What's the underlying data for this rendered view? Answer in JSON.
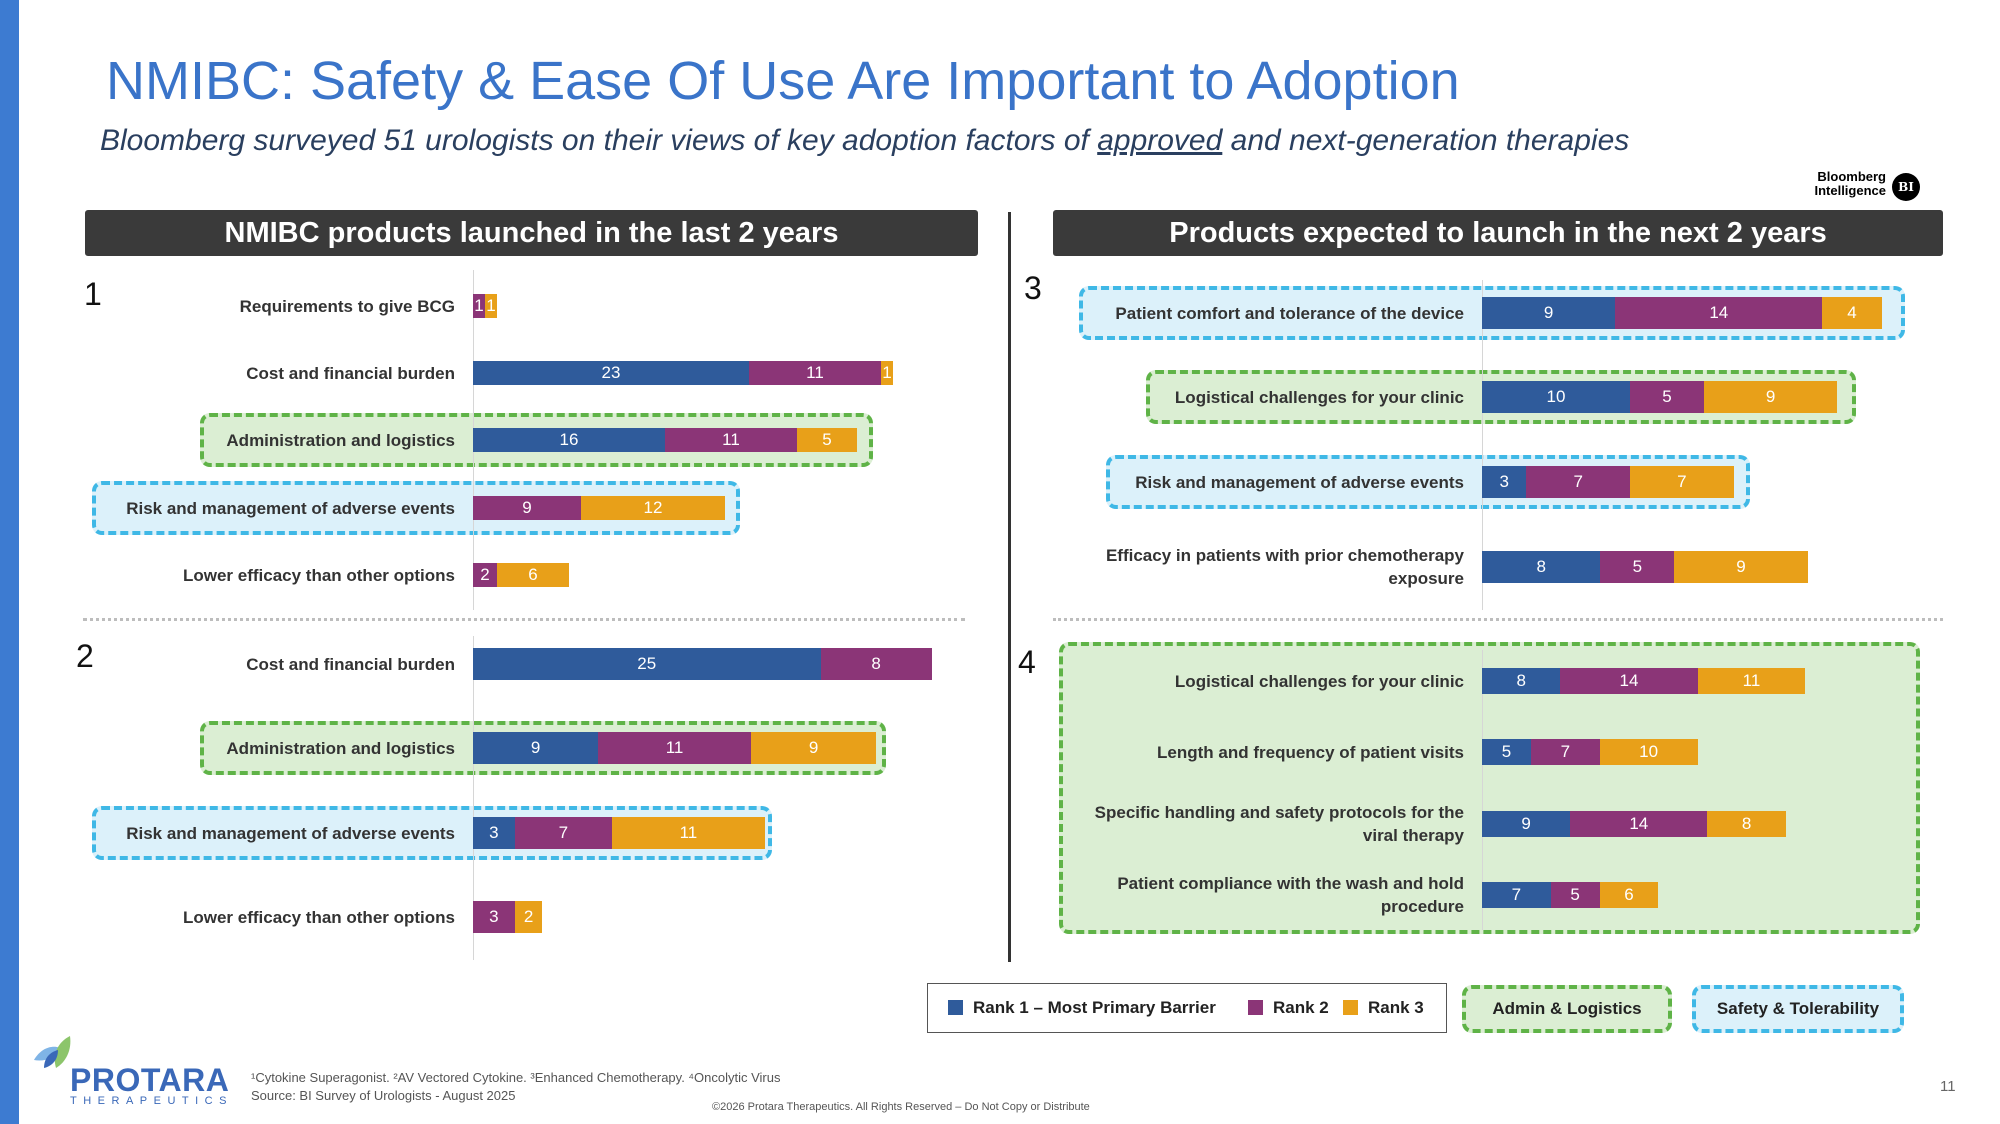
{
  "title": "NMIBC: Safety & Ease Of Use Are Important to Adoption",
  "subtitle": {
    "prefix": "Bloomberg surveyed 51 urologists on their views of key adoption factors of ",
    "underlined": "approved",
    "suffix": " and next-generation therapies"
  },
  "bi_logo": {
    "line1": "Bloomberg",
    "line2": "Intelligence",
    "badge": "BI"
  },
  "headers": {
    "left": "NMIBC products launched in the last 2 years",
    "right": "Products expected to launch in the next 2 years"
  },
  "colors": {
    "rank1": "#2f5b9b",
    "rank2": "#8b3577",
    "rank3": "#e8a019",
    "admin_border": "#5fb347",
    "safety_border": "#3fb8e6"
  },
  "chart_data": [
    {
      "type": "bar",
      "stacked": true,
      "orientation": "horizontal",
      "panel": "1",
      "categories": [
        "Requirements to give BCG",
        "Cost and financial burden",
        "Administration and logistics",
        "Risk and management of adverse events",
        "Lower efficacy than other options"
      ],
      "series": [
        {
          "name": "Rank 1 – Most Primary Barrier",
          "values": [
            0,
            23,
            16,
            0,
            0
          ]
        },
        {
          "name": "Rank 2",
          "values": [
            1,
            11,
            11,
            9,
            2
          ]
        },
        {
          "name": "Rank 3",
          "values": [
            1,
            1,
            5,
            12,
            6
          ]
        }
      ],
      "highlight": [
        "",
        "",
        "admin",
        "safety",
        ""
      ]
    },
    {
      "type": "bar",
      "stacked": true,
      "orientation": "horizontal",
      "panel": "2",
      "categories": [
        "Cost and financial burden",
        "Administration and logistics",
        "Risk and management of adverse events",
        "Lower efficacy than other options"
      ],
      "series": [
        {
          "name": "Rank 1 – Most Primary Barrier",
          "values": [
            25,
            9,
            3,
            0
          ]
        },
        {
          "name": "Rank 2",
          "values": [
            8,
            11,
            7,
            3
          ]
        },
        {
          "name": "Rank 3",
          "values": [
            0,
            9,
            11,
            2
          ]
        }
      ],
      "highlight": [
        "",
        "admin",
        "safety",
        ""
      ]
    },
    {
      "type": "bar",
      "stacked": true,
      "orientation": "horizontal",
      "panel": "3",
      "categories": [
        "Patient comfort and tolerance of the device",
        "Logistical challenges for your clinic",
        "Risk and management of adverse events",
        "Efficacy in patients with prior chemotherapy exposure"
      ],
      "series": [
        {
          "name": "Rank 1 – Most Primary Barrier",
          "values": [
            9,
            10,
            3,
            8
          ]
        },
        {
          "name": "Rank 2",
          "values": [
            14,
            5,
            7,
            5
          ]
        },
        {
          "name": "Rank 3",
          "values": [
            4,
            9,
            7,
            9
          ]
        }
      ],
      "highlight": [
        "safety",
        "admin",
        "safety",
        ""
      ]
    },
    {
      "type": "bar",
      "stacked": true,
      "orientation": "horizontal",
      "panel": "4",
      "categories": [
        "Logistical challenges for your clinic",
        "Length and frequency of patient visits",
        "Specific handling and safety protocols for the viral therapy",
        "Patient compliance with the wash and hold procedure"
      ],
      "series": [
        {
          "name": "Rank 1 – Most Primary Barrier",
          "values": [
            8,
            5,
            9,
            7
          ]
        },
        {
          "name": "Rank 2",
          "values": [
            14,
            7,
            14,
            5
          ]
        },
        {
          "name": "Rank 3",
          "values": [
            11,
            10,
            8,
            6
          ]
        }
      ],
      "highlight": [
        "admin",
        "admin",
        "admin",
        "admin"
      ]
    }
  ],
  "legend": {
    "rank1": "Rank 1 – Most Primary Barrier",
    "rank2": "Rank 2",
    "rank3": "Rank 3"
  },
  "badges": {
    "admin": "Admin & Logistics",
    "safety": "Safety & Tolerability"
  },
  "footnote": {
    "line1": "¹Cytokine Superagonist. ²AV Vectored Cytokine. ³Enhanced Chemotherapy. ⁴Oncolytic Virus",
    "line2": "Source: BI Survey of Urologists - August 2025"
  },
  "copyright": "©2026 Protara Therapeutics. All Rights Reserved – Do Not Copy or Distribute",
  "page_number": "11",
  "company_logo": {
    "name": "PROTARA",
    "sub": "THERAPEUTICS"
  }
}
